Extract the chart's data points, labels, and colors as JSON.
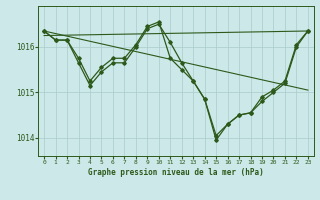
{
  "title": "Graphe pression niveau de la mer (hPa)",
  "background_color": "#cce8e8",
  "line_color": "#2d5a1b",
  "grid_color": "#aacccc",
  "xlim": [
    -0.5,
    23.5
  ],
  "ylim": [
    1013.6,
    1016.9
  ],
  "yticks": [
    1014,
    1015,
    1016
  ],
  "xticks": [
    0,
    1,
    2,
    3,
    4,
    5,
    6,
    7,
    8,
    9,
    10,
    11,
    12,
    13,
    14,
    15,
    16,
    17,
    18,
    19,
    20,
    21,
    22,
    23
  ],
  "series1_x": [
    0,
    1,
    2,
    3,
    4,
    5,
    6,
    7,
    8,
    9,
    10,
    11,
    12,
    13,
    14,
    15,
    16,
    17,
    18,
    19,
    20,
    21,
    22,
    23
  ],
  "series1_y": [
    1016.35,
    1016.15,
    1016.15,
    1015.75,
    1015.25,
    1015.55,
    1015.75,
    1015.75,
    1016.05,
    1016.45,
    1016.55,
    1015.75,
    1015.5,
    1015.25,
    1014.85,
    1013.95,
    1014.3,
    1014.5,
    1014.55,
    1014.9,
    1015.05,
    1015.25,
    1016.05,
    1016.35
  ],
  "series2_x": [
    0,
    1,
    2,
    3,
    4,
    5,
    6,
    7,
    8,
    9,
    10,
    11,
    12,
    13,
    14,
    15,
    16,
    17,
    18,
    19,
    20,
    21,
    22,
    23
  ],
  "series2_y": [
    1016.35,
    1016.15,
    1016.15,
    1015.65,
    1015.15,
    1015.45,
    1015.65,
    1015.65,
    1016.0,
    1016.4,
    1016.5,
    1016.1,
    1015.65,
    1015.25,
    1014.85,
    1014.05,
    1014.3,
    1014.5,
    1014.55,
    1014.8,
    1015.0,
    1015.2,
    1016.0,
    1016.35
  ],
  "trend1_x": [
    0,
    23
  ],
  "trend1_y": [
    1016.35,
    1015.05
  ],
  "trend2_x": [
    0,
    23
  ],
  "trend2_y": [
    1016.25,
    1016.35
  ]
}
